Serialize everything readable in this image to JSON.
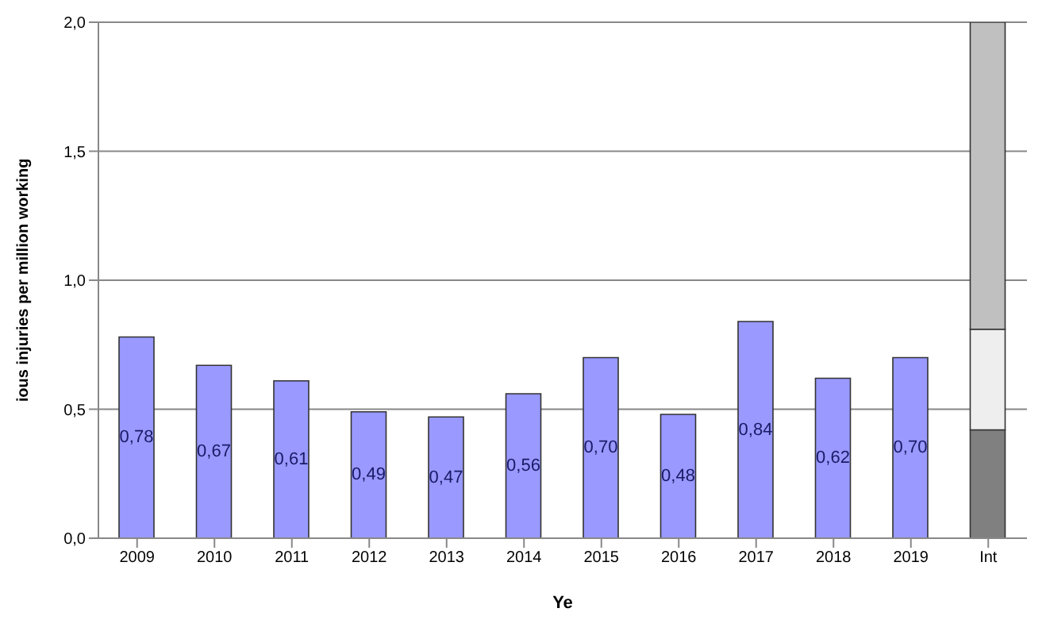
{
  "chart_data": {
    "type": "bar",
    "xlabel": "Ye",
    "ylabel": "ious injuries per million working",
    "categories": [
      "2009",
      "2010",
      "2011",
      "2012",
      "2013",
      "2014",
      "2015",
      "2016",
      "2017",
      "2018",
      "2019",
      "Int"
    ],
    "stacked": true,
    "series": [
      {
        "color": "#9999ff",
        "values": [
          0.78,
          0.67,
          0.61,
          0.49,
          0.47,
          0.56,
          0.7,
          0.48,
          0.84,
          0.62,
          0.7,
          null
        ],
        "value_labels": [
          "0,78",
          "0,67",
          "0,61",
          "0,49",
          "0,47",
          "0,56",
          "0,70",
          "0,48",
          "0,84",
          "0,62",
          "0,70",
          null
        ]
      },
      {
        "color": "#808080",
        "values": [
          null,
          null,
          null,
          null,
          null,
          null,
          null,
          null,
          null,
          null,
          null,
          0.42
        ]
      },
      {
        "color": "#eeeeee",
        "values": [
          null,
          null,
          null,
          null,
          null,
          null,
          null,
          null,
          null,
          null,
          null,
          0.39
        ]
      },
      {
        "color": "#c0c0c0",
        "values": [
          null,
          null,
          null,
          null,
          null,
          null,
          null,
          null,
          null,
          null,
          null,
          1.19
        ]
      }
    ],
    "ylim": [
      0,
      2
    ],
    "yticks": [
      {
        "value": 0,
        "label": "0,0"
      },
      {
        "value": 0.5,
        "label": "0,5"
      },
      {
        "value": 1,
        "label": "1,0"
      },
      {
        "value": 1.5,
        "label": "1,5"
      },
      {
        "value": 2,
        "label": "2,0"
      }
    ],
    "grid": "y",
    "legend": false
  }
}
